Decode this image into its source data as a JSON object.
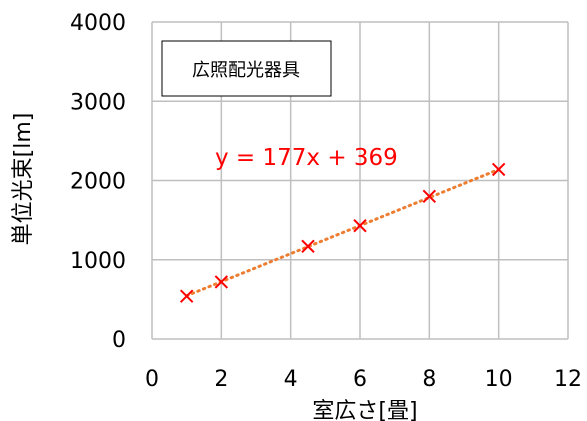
{
  "chart_data": {
    "type": "scatter",
    "title": "",
    "xlabel": "室広さ[畳]",
    "ylabel": "単位光束[lm]",
    "xlim": [
      0,
      12
    ],
    "ylim": [
      0,
      4000
    ],
    "xticks": [
      "0",
      "2",
      "4",
      "6",
      "8",
      "10",
      "12"
    ],
    "yticks": [
      "0",
      "1000",
      "2000",
      "3000",
      "4000"
    ],
    "grid": true,
    "legend": {
      "text": "広照配光器具",
      "placement": "top-left"
    },
    "series": [
      {
        "name": "広照配光器具",
        "marker": "x",
        "color": "#ff0000",
        "points": [
          {
            "x": 1,
            "y": 540
          },
          {
            "x": 2,
            "y": 720
          },
          {
            "x": 4.5,
            "y": 1170
          },
          {
            "x": 6,
            "y": 1430
          },
          {
            "x": 8,
            "y": 1800
          },
          {
            "x": 10,
            "y": 2140
          }
        ]
      }
    ],
    "trendline": {
      "slope": 177,
      "intercept": 369,
      "x_range": [
        1,
        10
      ],
      "style": "dotted",
      "color": "#ed7d31",
      "equation": "y = 177x + 369",
      "equation_color": "#ff0000"
    }
  }
}
